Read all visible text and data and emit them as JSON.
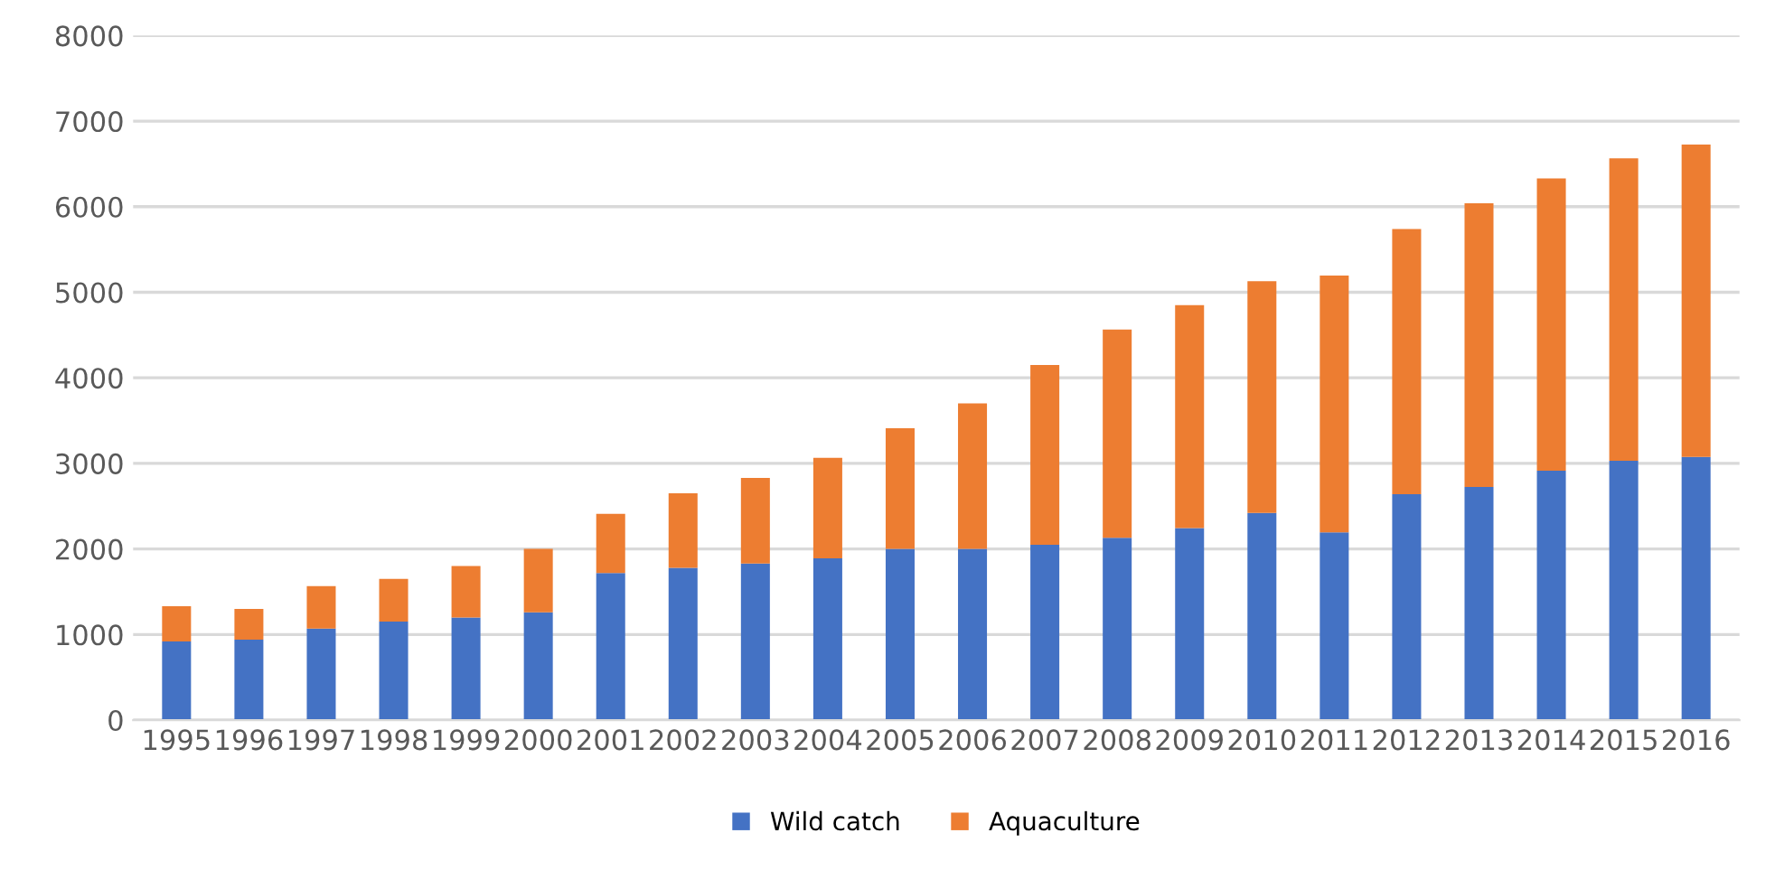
{
  "chart_data": {
    "type": "bar",
    "stacked": true,
    "categories": [
      "1995",
      "1996",
      "1997",
      "1998",
      "1999",
      "2000",
      "2001",
      "2002",
      "2003",
      "2004",
      "2005",
      "2006",
      "2007",
      "2008",
      "2009",
      "2010",
      "2011",
      "2012",
      "2013",
      "2014",
      "2015",
      "2016"
    ],
    "series": [
      {
        "name": "Wild catch",
        "color": "#4472c4",
        "values": [
          920,
          940,
          1070,
          1150,
          1200,
          1260,
          1720,
          1780,
          1830,
          1890,
          2000,
          2000,
          2050,
          2130,
          2245,
          2420,
          2195,
          2640,
          2725,
          2915,
          3030,
          3075
        ]
      },
      {
        "name": "Aquaculture",
        "color": "#ed7d31",
        "values": [
          410,
          360,
          495,
          500,
          600,
          740,
          690,
          870,
          1000,
          1175,
          1410,
          1700,
          2100,
          2435,
          2605,
          2710,
          3000,
          3100,
          3315,
          3415,
          3535,
          3650
        ]
      }
    ],
    "ylim": [
      0,
      8000
    ],
    "yticks": [
      0,
      1000,
      2000,
      3000,
      4000,
      5000,
      6000,
      7000,
      8000
    ],
    "grid": "y",
    "legend": "bottom"
  }
}
